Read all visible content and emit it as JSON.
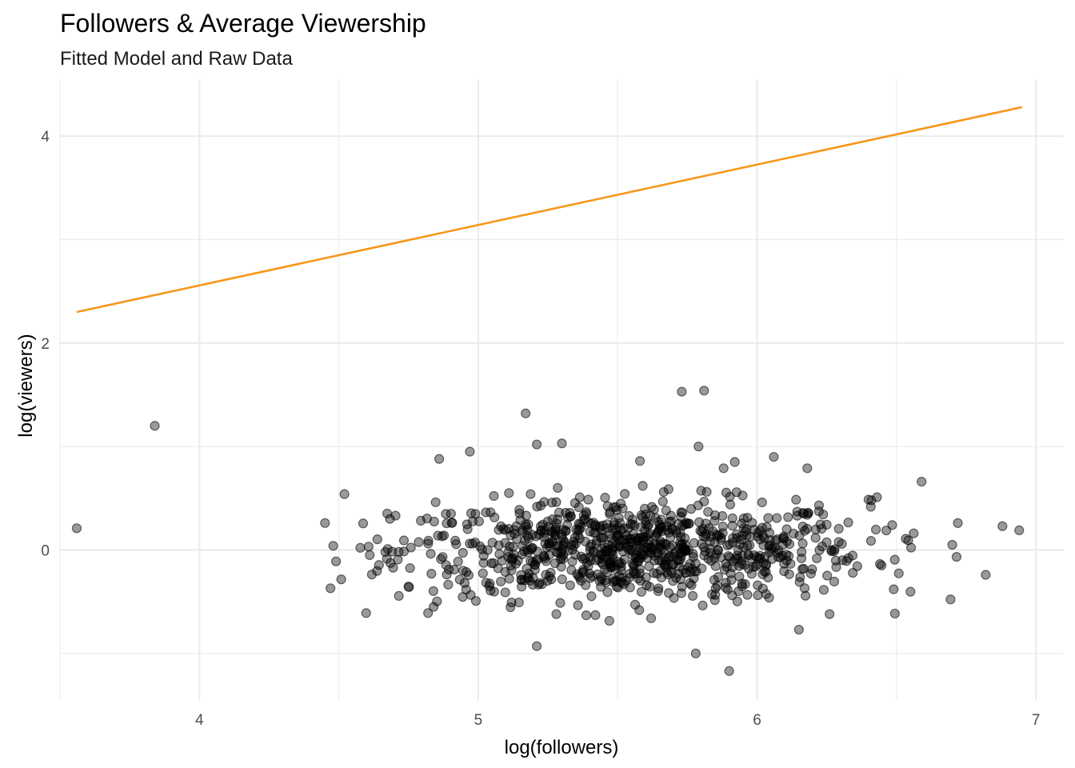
{
  "chart_data": {
    "type": "scatter",
    "title": "Followers & Average Viewership",
    "subtitle": "Fitted Model and Raw Data",
    "xlabel": "log(followers)",
    "ylabel": "log(viewers)",
    "xlim": [
      3.5,
      7.1
    ],
    "ylim": [
      -1.45,
      4.55
    ],
    "x_ticks": [
      4,
      5,
      6,
      7
    ],
    "y_ticks": [
      0,
      2,
      4
    ],
    "grid": true,
    "colors": {
      "points": "#000000",
      "fit_line": "#F7971C",
      "grid": "#EBEBEB"
    },
    "series": [
      {
        "type": "line",
        "x": [
          3.56,
          6.95
        ],
        "y": [
          2.3,
          4.28
        ]
      },
      {
        "type": "scatter",
        "x": [
          3.56,
          3.84,
          5.73,
          5.81,
          5.17,
          5.21,
          5.3,
          5.79,
          5.58,
          5.59,
          5.88,
          6.06,
          5.92,
          6.18,
          6.41,
          6.43,
          4.97,
          4.86,
          4.52,
          4.49,
          4.47,
          4.48,
          4.82,
          4.84,
          5.11,
          5.21,
          5.28,
          5.62,
          5.78,
          5.9,
          6.15,
          6.26,
          6.49,
          6.72,
          6.88,
          6.94,
          6.59,
          6.7,
          6.82
        ],
        "y": [
          0.21,
          1.2,
          1.53,
          1.54,
          1.32,
          1.02,
          1.03,
          1.0,
          0.86,
          0.62,
          0.79,
          0.9,
          0.85,
          0.79,
          0.48,
          0.51,
          0.95,
          0.88,
          0.54,
          -0.11,
          -0.37,
          0.04,
          -0.61,
          -0.55,
          0.55,
          -0.93,
          -0.62,
          -0.66,
          -1.0,
          -1.17,
          -0.77,
          -0.62,
          -0.38,
          0.26,
          0.23,
          0.19,
          0.66,
          0.05,
          -0.24
        ]
      }
    ]
  }
}
